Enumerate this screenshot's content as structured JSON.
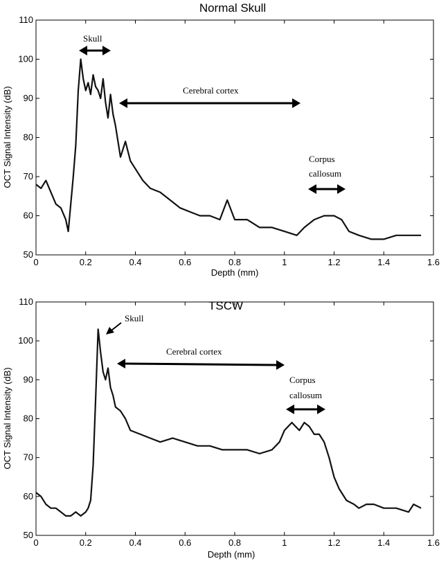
{
  "chart_data": [
    {
      "type": "line",
      "title": "Normal Skull",
      "xlabel": "Depth (mm)",
      "ylabel": "OCT Signal Intensity (dB)",
      "xlim": [
        0,
        1.6
      ],
      "ylim": [
        50,
        110
      ],
      "xticks": [
        "0",
        "0.2",
        "0.4",
        "0.6",
        "0.8",
        "1",
        "1.2",
        "1.4",
        "1.6"
      ],
      "yticks": [
        "50",
        "60",
        "70",
        "80",
        "90",
        "100",
        "110"
      ],
      "series": [
        {
          "x": [
            0,
            0.02,
            0.04,
            0.06,
            0.08,
            0.1,
            0.12,
            0.13,
            0.14,
            0.15,
            0.16,
            0.17,
            0.18,
            0.19,
            0.2,
            0.21,
            0.22,
            0.23,
            0.24,
            0.25,
            0.26,
            0.27,
            0.28,
            0.29,
            0.3,
            0.31,
            0.32,
            0.33,
            0.34,
            0.35,
            0.36,
            0.38,
            0.4,
            0.43,
            0.46,
            0.5,
            0.54,
            0.58,
            0.62,
            0.66,
            0.7,
            0.74,
            0.77,
            0.8,
            0.85,
            0.9,
            0.95,
            1.0,
            1.05,
            1.08,
            1.12,
            1.16,
            1.2,
            1.23,
            1.26,
            1.3,
            1.35,
            1.4,
            1.45,
            1.5,
            1.55
          ],
          "y": [
            68,
            67,
            69,
            66,
            63,
            62,
            59,
            56,
            63,
            70,
            78,
            92,
            100,
            95,
            92,
            94,
            91,
            96,
            93,
            92,
            90,
            95,
            89,
            85,
            91,
            86,
            83,
            79,
            75,
            77,
            79,
            74,
            72,
            69,
            67,
            66,
            64,
            62,
            61,
            60,
            60,
            59,
            64,
            59,
            59,
            57,
            57,
            56,
            55,
            57,
            59,
            60,
            60,
            59,
            56,
            55,
            54,
            54,
            55,
            55,
            55
          ]
        }
      ],
      "annotations": [
        "Skull",
        "Cerebral cortex",
        "Corpus",
        "callosum"
      ]
    },
    {
      "type": "line",
      "title": "TSCW",
      "xlabel": "Depth (mm)",
      "ylabel": "OCT Signal Intensity (dB)",
      "xlim": [
        0,
        1.6
      ],
      "ylim": [
        50,
        110
      ],
      "xticks": [
        "0",
        "0.2",
        "0.4",
        "0.6",
        "0.8",
        "1",
        "1.2",
        "1.4",
        "1.6"
      ],
      "yticks": [
        "50",
        "60",
        "70",
        "80",
        "90",
        "100",
        "110"
      ],
      "series": [
        {
          "x": [
            0,
            0.02,
            0.04,
            0.06,
            0.08,
            0.1,
            0.12,
            0.14,
            0.16,
            0.18,
            0.2,
            0.21,
            0.22,
            0.23,
            0.24,
            0.25,
            0.26,
            0.27,
            0.28,
            0.29,
            0.3,
            0.31,
            0.32,
            0.34,
            0.36,
            0.38,
            0.42,
            0.46,
            0.5,
            0.55,
            0.6,
            0.65,
            0.7,
            0.75,
            0.8,
            0.85,
            0.9,
            0.95,
            0.98,
            1.0,
            1.03,
            1.06,
            1.08,
            1.1,
            1.12,
            1.14,
            1.16,
            1.18,
            1.2,
            1.22,
            1.25,
            1.28,
            1.3,
            1.33,
            1.36,
            1.4,
            1.45,
            1.5,
            1.52,
            1.55
          ],
          "y": [
            61,
            60,
            58,
            57,
            57,
            56,
            55,
            55,
            56,
            55,
            56,
            57,
            59,
            68,
            85,
            103,
            97,
            92,
            90,
            93,
            88,
            86,
            83,
            82,
            80,
            77,
            76,
            75,
            74,
            75,
            74,
            73,
            73,
            72,
            72,
            72,
            71,
            72,
            74,
            77,
            79,
            77,
            79,
            78,
            76,
            76,
            74,
            70,
            65,
            62,
            59,
            58,
            57,
            58,
            58,
            57,
            57,
            56,
            58,
            57
          ]
        }
      ],
      "annotations": [
        "Skull",
        "Cerebral cortex",
        "Corpus",
        "callosum"
      ]
    }
  ]
}
